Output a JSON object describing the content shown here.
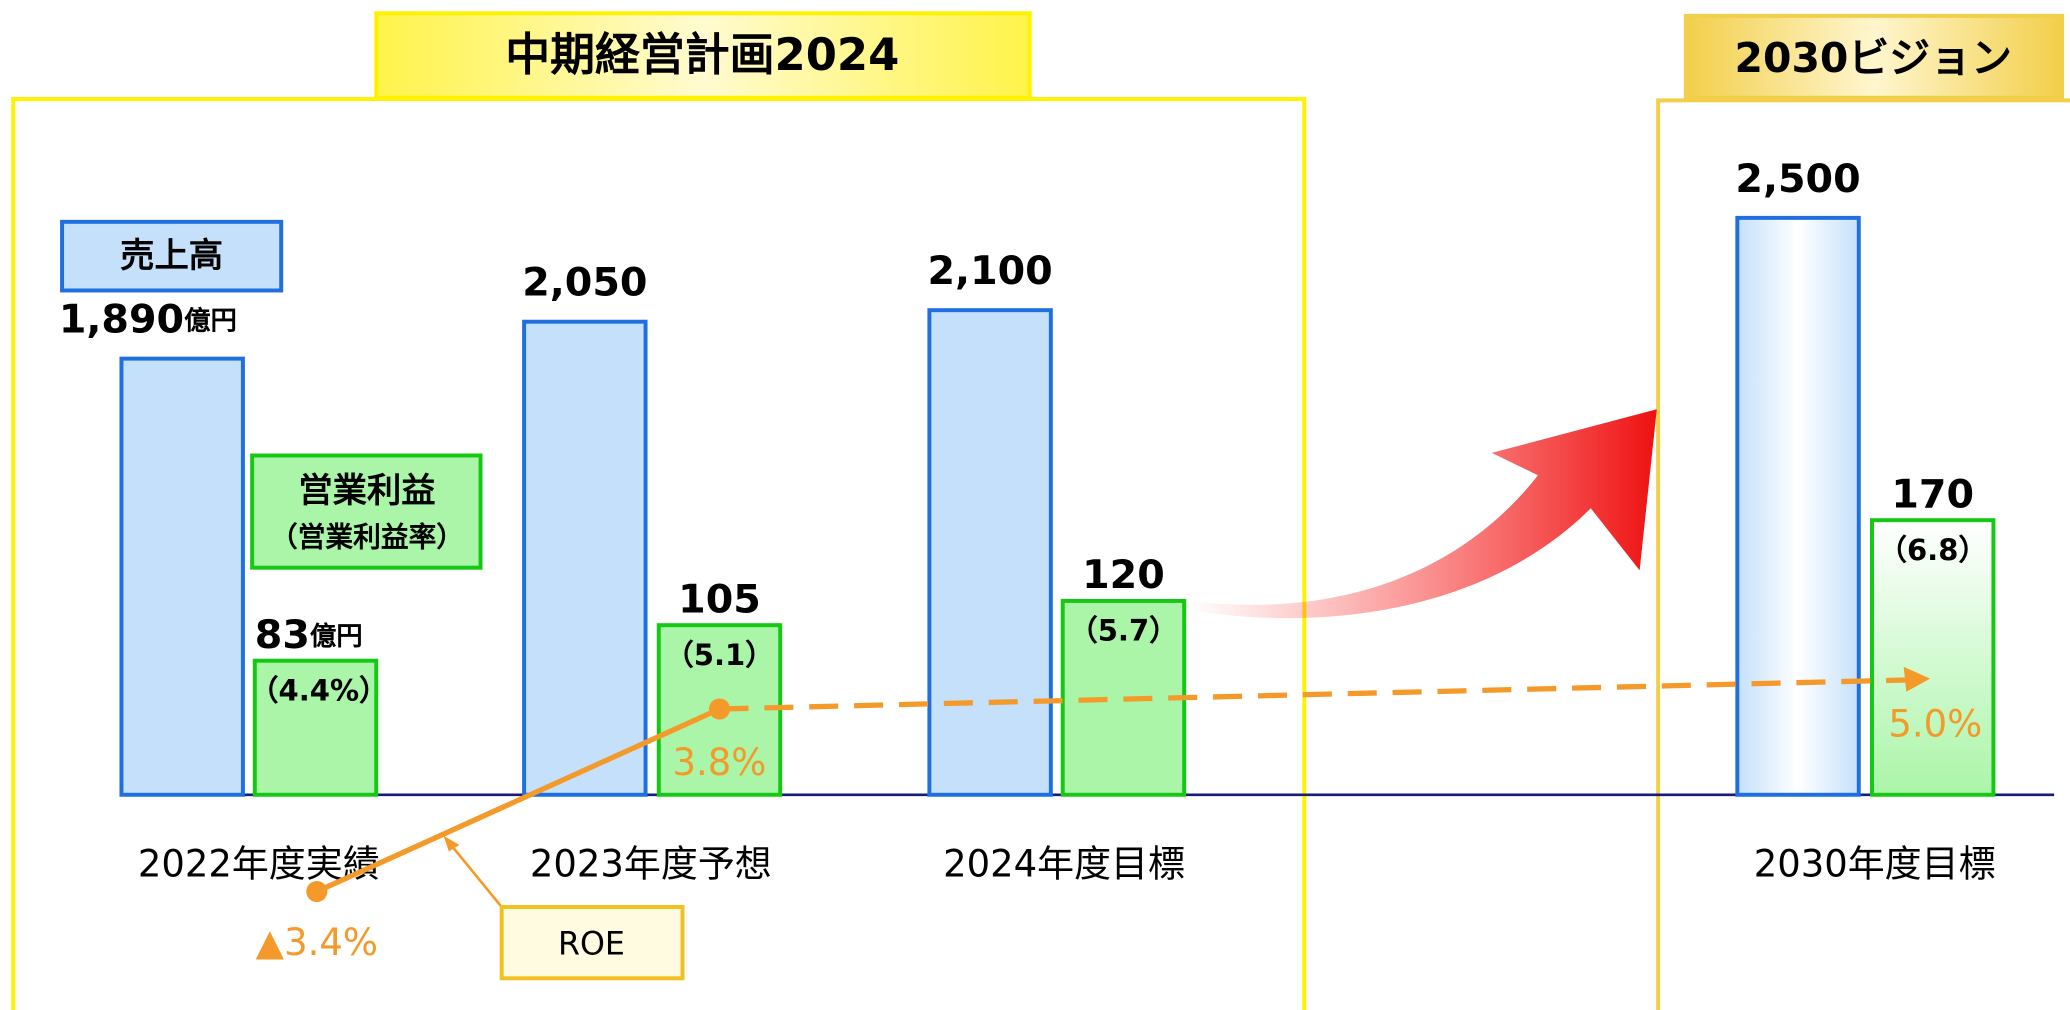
{
  "chart_data": {
    "type": "bar",
    "groups": [
      {
        "title": "中期経営計画2024"
      },
      {
        "title": "2030ビジョン"
      }
    ],
    "categories": [
      "2022年度実績",
      "2023年度予想",
      "2024年度目標",
      "2030年度目標"
    ],
    "series": [
      {
        "name": "売上高",
        "color": "#c5e0fb",
        "values": [
          1890,
          2050,
          2100,
          2500
        ],
        "value_labels": [
          "1,890",
          "2,050",
          "2,100",
          "2,500"
        ],
        "unit": "億円"
      },
      {
        "name": "営業利益",
        "subname": "（営業利益率）",
        "color": "#aaf5a8",
        "values": [
          83,
          105,
          120,
          170
        ],
        "unit": "億円"
      }
    ],
    "margin": {
      "values": [
        4.4,
        5.1,
        5.7,
        6.8
      ],
      "value_labels": [
        "（4.4%）",
        "（5.1）",
        "（5.7）",
        "（6.8）"
      ]
    },
    "roe": {
      "name": "ROE",
      "color": "#f39a2b",
      "values": [
        -3.4,
        3.8,
        null,
        5.0
      ],
      "value_labels": [
        "▲3.4%",
        "3.8%",
        null,
        "5.0%"
      ]
    }
  }
}
